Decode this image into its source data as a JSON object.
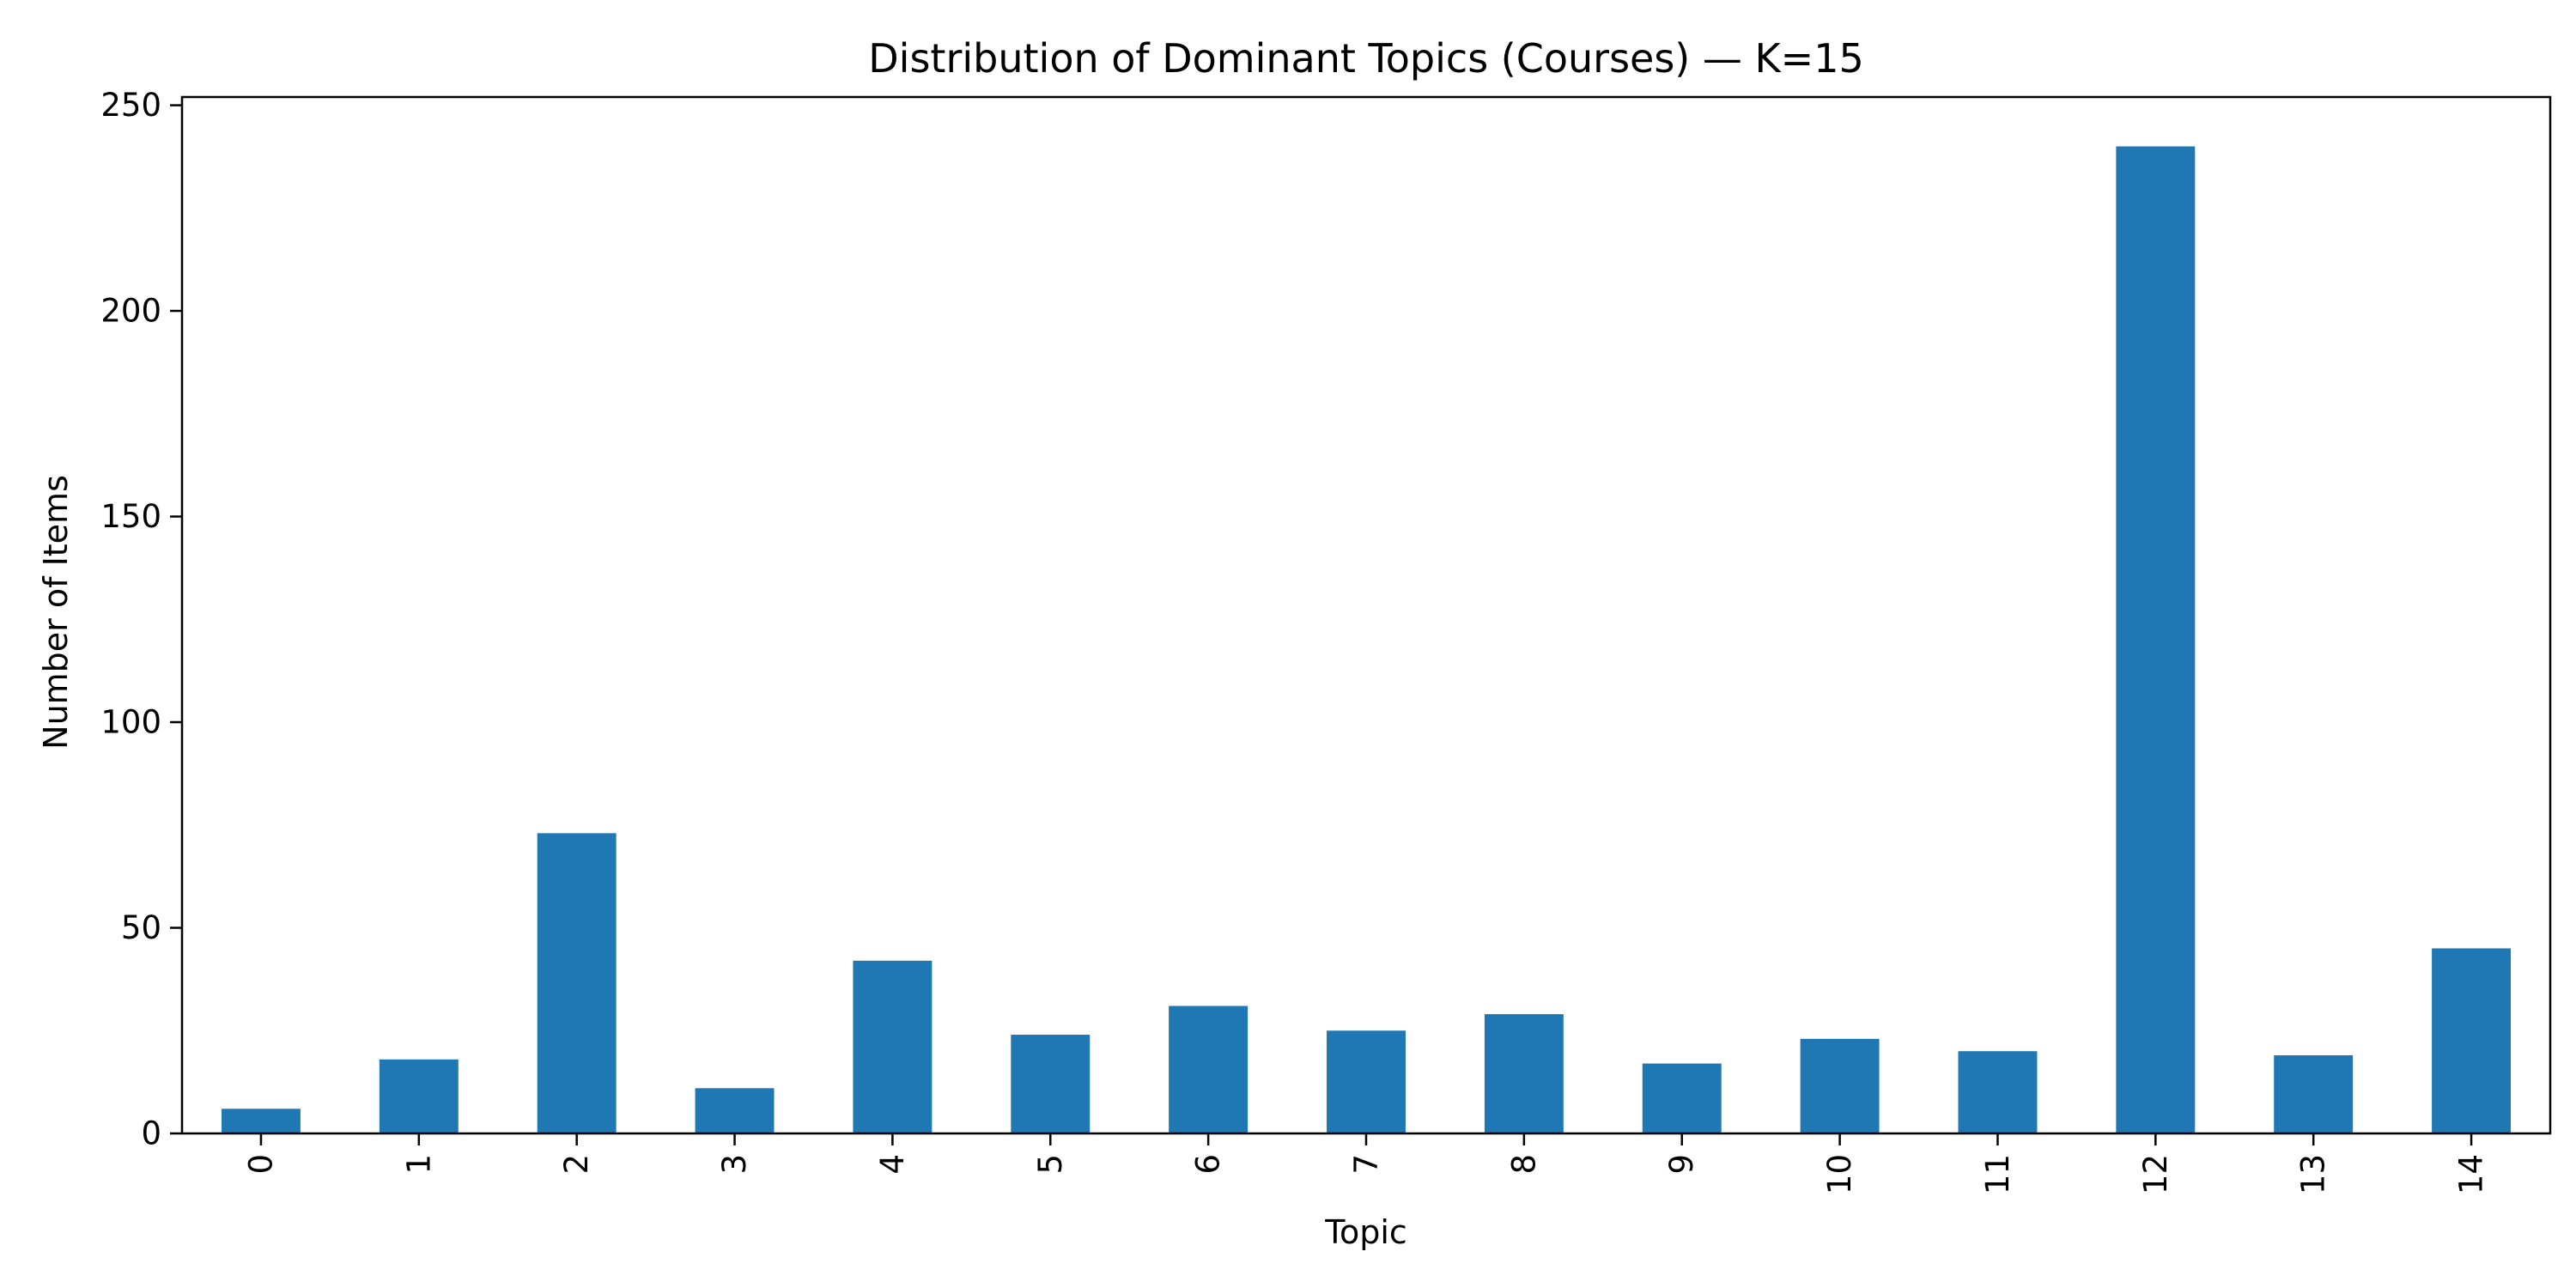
{
  "chart_data": {
    "type": "bar",
    "title": "Distribution of Dominant Topics (Courses) — K=15",
    "xlabel": "Topic",
    "ylabel": "Number of Items",
    "categories": [
      "0",
      "1",
      "2",
      "3",
      "4",
      "5",
      "6",
      "7",
      "8",
      "9",
      "10",
      "11",
      "12",
      "13",
      "14"
    ],
    "values": [
      6,
      18,
      73,
      11,
      42,
      24,
      31,
      25,
      29,
      17,
      23,
      20,
      240,
      19,
      45
    ],
    "yticks": [
      0,
      50,
      100,
      150,
      200,
      250
    ],
    "ylim": [
      0,
      252
    ],
    "bar_color": "#1f77b4",
    "grid": false,
    "xtick_rotation": "vertical"
  }
}
